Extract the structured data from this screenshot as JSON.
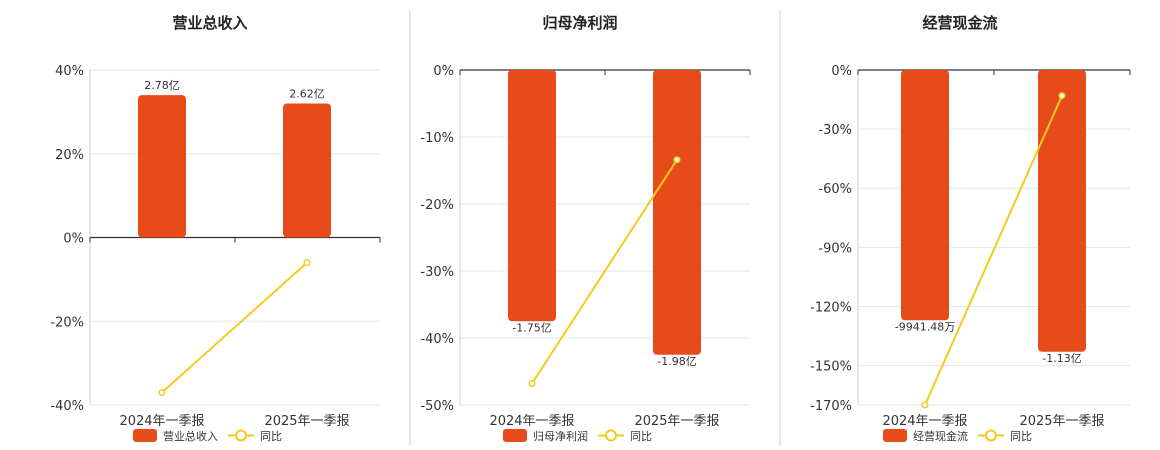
{
  "colors": {
    "bar": "#e84b1a",
    "line": "#f2cc1c",
    "grid": "#e6e6e6",
    "axis": "#333333",
    "divider": "#cccccc"
  },
  "chart_data": [
    {
      "type": "bar",
      "title": "营业总收入",
      "categories": [
        "2024年一季报",
        "2025年一季报"
      ],
      "ylim": [
        -40,
        40
      ],
      "yticks": [
        40,
        20,
        0,
        -20,
        -40
      ],
      "ytick_labels": [
        "40%",
        "20%",
        "0%",
        "-20%",
        "-40%"
      ],
      "grid": true,
      "legend_position": "bottom",
      "series": [
        {
          "name": "营业总收入",
          "kind": "bar",
          "values": [
            34,
            32
          ],
          "labels": [
            "2.78亿",
            "2.62亿"
          ]
        },
        {
          "name": "同比",
          "kind": "line",
          "values": [
            -37,
            -6
          ]
        }
      ]
    },
    {
      "type": "bar",
      "title": "归母净利润",
      "categories": [
        "2024年一季报",
        "2025年一季报"
      ],
      "ylim": [
        -50,
        0
      ],
      "yticks": [
        0,
        -10,
        -20,
        -30,
        -40,
        -50
      ],
      "ytick_labels": [
        "0%",
        "-10%",
        "-20%",
        "-30%",
        "-40%",
        "-50%"
      ],
      "grid": true,
      "legend_position": "bottom",
      "series": [
        {
          "name": "归母净利润",
          "kind": "bar",
          "values": [
            -37.5,
            -42.5
          ],
          "labels": [
            "-1.75亿",
            "-1.98亿"
          ]
        },
        {
          "name": "同比",
          "kind": "line",
          "values": [
            -46.8,
            -13.4
          ]
        }
      ]
    },
    {
      "type": "bar",
      "title": "经营现金流",
      "categories": [
        "2024年一季报",
        "2025年一季报"
      ],
      "ylim": [
        -170,
        0
      ],
      "yticks": [
        0,
        -30,
        -60,
        -90,
        -120,
        -150,
        -170
      ],
      "ytick_labels": [
        "0%",
        "-30%",
        "-60%",
        "-90%",
        "-120%",
        "-150%",
        "-170%"
      ],
      "grid": true,
      "legend_position": "bottom",
      "series": [
        {
          "name": "经营现金流",
          "kind": "bar",
          "values": [
            -127,
            -143
          ],
          "labels": [
            "-9941.48万",
            "-1.13亿"
          ]
        },
        {
          "name": "同比",
          "kind": "line",
          "values": [
            -170,
            -13
          ]
        }
      ]
    }
  ]
}
